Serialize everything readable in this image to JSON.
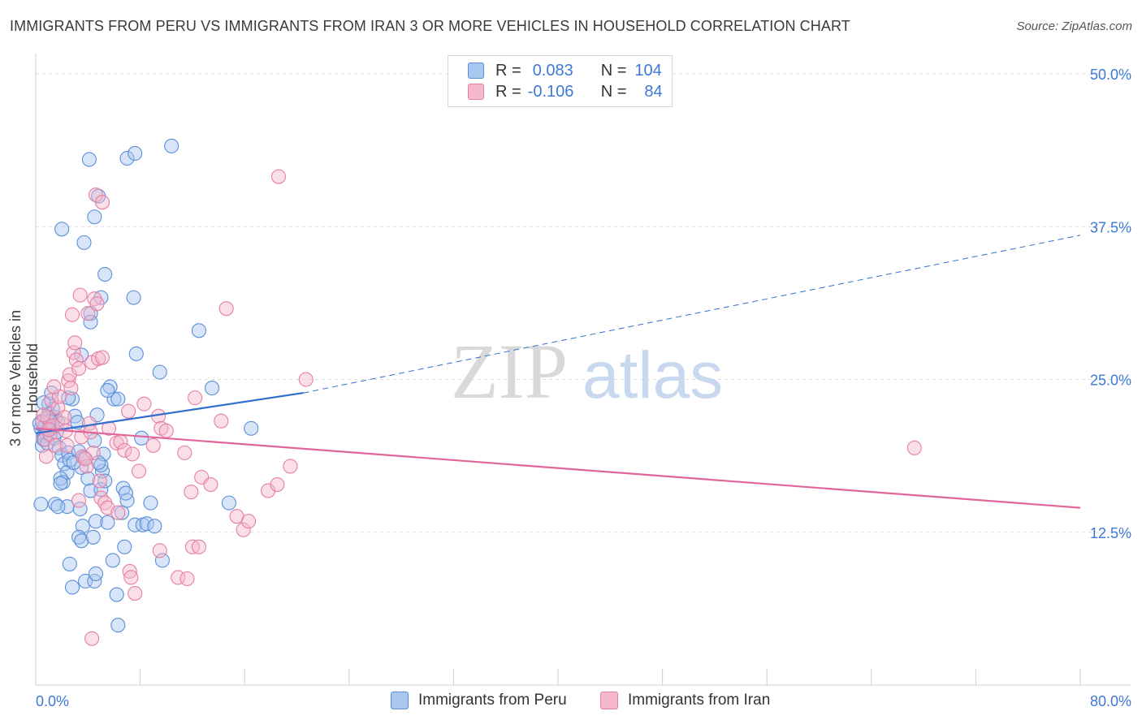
{
  "title": "IMMIGRANTS FROM PERU VS IMMIGRANTS FROM IRAN 3 OR MORE VEHICLES IN HOUSEHOLD CORRELATION CHART",
  "source": "Source: ZipAtlas.com",
  "watermark": {
    "zip": "ZIP",
    "atlas": "atlas"
  },
  "legend": {
    "rows": [
      {
        "r_label": "R =",
        "r_value": "0.083",
        "n_label": "N =",
        "n_value": "104"
      },
      {
        "r_label": "R =",
        "r_value": "-0.106",
        "n_label": "N =",
        "n_value": "84"
      }
    ]
  },
  "bottom_legend": [
    "Immigrants from Peru",
    "Immigrants from Iran"
  ],
  "colors": {
    "peru_fill": "#a9c6ef",
    "peru_stroke": "#5b8fd8",
    "peru_line": "#2f6fce",
    "iran_fill": "#f5b8cc",
    "iran_stroke": "#e57fa2",
    "iran_line": "#e0669a",
    "axis_text": "#3d78d8",
    "grid": "#dddddd"
  },
  "chart_data": {
    "type": "scatter",
    "title": "IMMIGRANTS FROM PERU VS IMMIGRANTS FROM IRAN 3 OR MORE VEHICLES IN HOUSEHOLD CORRELATION CHART",
    "xlabel": "",
    "ylabel": "3 or more Vehicles in Household",
    "xlim": [
      0,
      80
    ],
    "ylim": [
      0,
      51
    ],
    "x_tick_labels": [
      "0.0%",
      "80.0%"
    ],
    "y_ticks": [
      12.5,
      25.0,
      37.5,
      50.0
    ],
    "y_tick_labels": [
      "12.5%",
      "25.0%",
      "37.5%",
      "50.0%"
    ],
    "series": [
      {
        "name": "Immigrants from Peru",
        "R": 0.083,
        "N": 104,
        "trend": {
          "x0": 0,
          "y0": 20.6,
          "x1": 20.5,
          "y1": 23.9,
          "dashed_to_x": 80,
          "dashed_to_y": 36.8
        },
        "points": [
          [
            0.4,
            21.0
          ],
          [
            0.5,
            21.6
          ],
          [
            0.6,
            20.4
          ],
          [
            0.7,
            21.2
          ],
          [
            0.8,
            20.6
          ],
          [
            0.9,
            21.8
          ],
          [
            1.0,
            22.2
          ],
          [
            1.1,
            20.9
          ],
          [
            0.5,
            19.6
          ],
          [
            0.6,
            20.1
          ],
          [
            0.3,
            21.4
          ],
          [
            0.9,
            19.8
          ],
          [
            1.2,
            21.0
          ],
          [
            1.4,
            20.2
          ],
          [
            1.5,
            21.9
          ],
          [
            1.3,
            22.6
          ],
          [
            1.6,
            20.7
          ],
          [
            1.7,
            21.5
          ],
          [
            1.8,
            19.4
          ],
          [
            2.0,
            18.8
          ],
          [
            2.2,
            18.1
          ],
          [
            2.4,
            17.4
          ],
          [
            2.1,
            16.6
          ],
          [
            1.9,
            16.9
          ],
          [
            2.5,
            19.0
          ],
          [
            2.6,
            18.4
          ],
          [
            2.8,
            23.4
          ],
          [
            3.0,
            22.0
          ],
          [
            3.2,
            21.5
          ],
          [
            3.3,
            19.1
          ],
          [
            3.5,
            17.8
          ],
          [
            3.7,
            18.6
          ],
          [
            3.4,
            14.4
          ],
          [
            3.6,
            13.0
          ],
          [
            3.3,
            12.1
          ],
          [
            3.5,
            11.8
          ],
          [
            4.0,
            16.9
          ],
          [
            4.2,
            15.9
          ],
          [
            4.4,
            12.1
          ],
          [
            4.6,
            13.4
          ],
          [
            2.4,
            14.6
          ],
          [
            1.5,
            14.8
          ],
          [
            1.9,
            16.5
          ],
          [
            2.6,
            9.9
          ],
          [
            2.8,
            8.0
          ],
          [
            3.8,
            8.5
          ],
          [
            4.5,
            8.5
          ],
          [
            4.6,
            9.1
          ],
          [
            4.5,
            20.0
          ],
          [
            4.7,
            22.1
          ],
          [
            5.1,
            17.5
          ],
          [
            5.0,
            18.0
          ],
          [
            5.0,
            16.0
          ],
          [
            5.2,
            18.9
          ],
          [
            5.3,
            16.7
          ],
          [
            5.5,
            13.3
          ],
          [
            5.9,
            10.2
          ],
          [
            6.2,
            7.4
          ],
          [
            6.3,
            4.9
          ],
          [
            6.6,
            14.1
          ],
          [
            6.8,
            11.3
          ],
          [
            6.7,
            16.1
          ],
          [
            7.0,
            15.1
          ],
          [
            7.6,
            13.1
          ],
          [
            8.2,
            13.1
          ],
          [
            8.5,
            13.2
          ],
          [
            8.8,
            14.9
          ],
          [
            9.7,
            10.2
          ],
          [
            6.0,
            23.4
          ],
          [
            5.7,
            24.4
          ],
          [
            6.3,
            23.4
          ],
          [
            5.5,
            24.1
          ],
          [
            7.7,
            27.1
          ],
          [
            7.5,
            31.7
          ],
          [
            9.5,
            25.6
          ],
          [
            8.1,
            20.2
          ],
          [
            12.5,
            29.0
          ],
          [
            13.5,
            24.3
          ],
          [
            16.5,
            21.0
          ],
          [
            14.8,
            14.9
          ],
          [
            2.0,
            37.3
          ],
          [
            3.7,
            36.2
          ],
          [
            4.5,
            38.3
          ],
          [
            5.3,
            33.6
          ],
          [
            4.8,
            40.0
          ],
          [
            4.2,
            30.4
          ],
          [
            5.0,
            31.7
          ],
          [
            3.5,
            27.0
          ],
          [
            4.2,
            29.7
          ],
          [
            4.1,
            43.0
          ],
          [
            7.0,
            43.1
          ],
          [
            7.6,
            43.5
          ],
          [
            10.4,
            44.1
          ],
          [
            1.0,
            23.0
          ],
          [
            1.2,
            23.9
          ],
          [
            2.5,
            23.5
          ],
          [
            0.4,
            14.8
          ],
          [
            1.7,
            14.6
          ],
          [
            0.6,
            23.1
          ],
          [
            1.1,
            21.6
          ],
          [
            2.9,
            18.2
          ],
          [
            4.8,
            18.2
          ],
          [
            6.9,
            15.7
          ],
          [
            9.1,
            13.0
          ]
        ]
      },
      {
        "name": "Immigrants from Iran",
        "R": -0.106,
        "N": 84,
        "trend": {
          "x0": 0,
          "y0": 21.0,
          "x1": 80,
          "y1": 14.5
        },
        "points": [
          [
            0.5,
            21.5
          ],
          [
            0.7,
            20.1
          ],
          [
            0.9,
            21.9
          ],
          [
            1.1,
            20.5
          ],
          [
            1.3,
            21.2
          ],
          [
            1.5,
            19.6
          ],
          [
            0.8,
            18.7
          ],
          [
            1.2,
            23.3
          ],
          [
            1.7,
            22.7
          ],
          [
            2.0,
            21.4
          ],
          [
            2.3,
            20.8
          ],
          [
            2.5,
            24.9
          ],
          [
            2.7,
            24.3
          ],
          [
            2.9,
            27.2
          ],
          [
            3.1,
            26.6
          ],
          [
            2.6,
            25.4
          ],
          [
            3.3,
            25.9
          ],
          [
            2.8,
            30.3
          ],
          [
            3.0,
            28.0
          ],
          [
            3.4,
            31.9
          ],
          [
            4.0,
            30.4
          ],
          [
            4.5,
            31.6
          ],
          [
            4.7,
            31.2
          ],
          [
            4.3,
            26.4
          ],
          [
            4.8,
            26.7
          ],
          [
            5.1,
            26.8
          ],
          [
            4.6,
            40.1
          ],
          [
            5.1,
            39.5
          ],
          [
            3.5,
            20.3
          ],
          [
            3.6,
            18.7
          ],
          [
            3.9,
            17.9
          ],
          [
            4.1,
            21.4
          ],
          [
            4.2,
            20.7
          ],
          [
            4.4,
            19.0
          ],
          [
            4.9,
            16.7
          ],
          [
            5.0,
            15.3
          ],
          [
            5.3,
            14.9
          ],
          [
            5.5,
            14.5
          ],
          [
            5.6,
            21.0
          ],
          [
            6.2,
            19.8
          ],
          [
            6.5,
            19.9
          ],
          [
            6.8,
            19.2
          ],
          [
            7.1,
            22.4
          ],
          [
            7.4,
            18.9
          ],
          [
            7.9,
            17.5
          ],
          [
            8.3,
            23.0
          ],
          [
            9.0,
            19.6
          ],
          [
            9.4,
            22.0
          ],
          [
            9.6,
            21.0
          ],
          [
            10.0,
            20.8
          ],
          [
            11.4,
            19.0
          ],
          [
            11.9,
            15.8
          ],
          [
            12.2,
            23.5
          ],
          [
            12.7,
            17.0
          ],
          [
            13.4,
            16.4
          ],
          [
            14.2,
            21.6
          ],
          [
            14.6,
            30.8
          ],
          [
            15.4,
            13.8
          ],
          [
            15.9,
            12.7
          ],
          [
            16.3,
            13.4
          ],
          [
            17.8,
            15.9
          ],
          [
            18.5,
            16.4
          ],
          [
            19.5,
            17.9
          ],
          [
            18.6,
            41.6
          ],
          [
            20.7,
            25.0
          ],
          [
            67.3,
            19.4
          ],
          [
            6.3,
            14.1
          ],
          [
            7.2,
            9.3
          ],
          [
            7.3,
            8.8
          ],
          [
            7.6,
            7.5
          ],
          [
            9.5,
            11.0
          ],
          [
            10.9,
            8.8
          ],
          [
            11.6,
            8.7
          ],
          [
            12.0,
            11.3
          ],
          [
            12.5,
            11.3
          ],
          [
            4.3,
            3.8
          ],
          [
            1.8,
            23.6
          ],
          [
            2.2,
            21.9
          ],
          [
            3.8,
            18.5
          ],
          [
            3.3,
            15.1
          ],
          [
            0.6,
            22.1
          ],
          [
            1.0,
            20.9
          ],
          [
            1.4,
            24.4
          ],
          [
            2.4,
            19.6
          ]
        ]
      }
    ]
  }
}
